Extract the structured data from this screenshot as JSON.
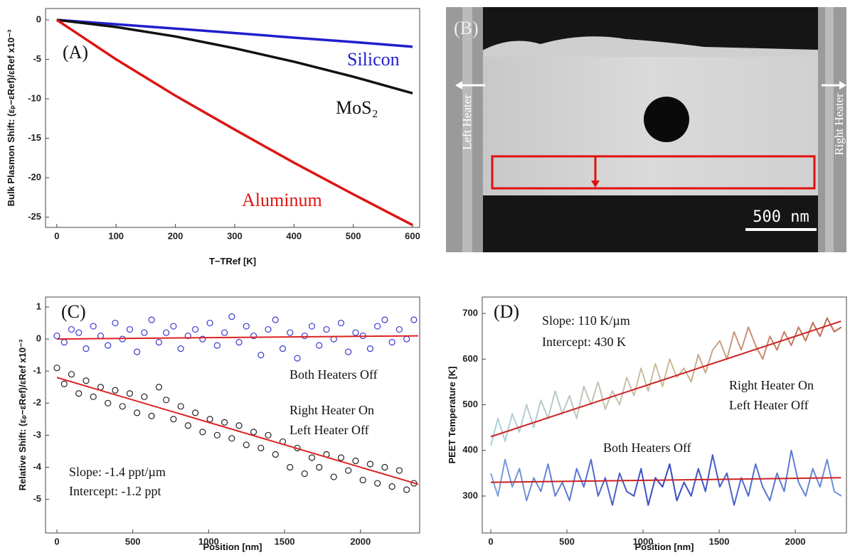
{
  "chart_data": [
    {
      "type": "line",
      "label": "(A)",
      "xlabel": "T−TRef [K]",
      "ylabel": "Bulk Plasmon Shift: (εₚ−εRef)/εRef x10⁻³",
      "x": [
        0,
        100,
        200,
        300,
        400,
        500,
        600
      ],
      "xlim": [
        -19,
        612
      ],
      "ylim": [
        -26.3,
        1.44
      ],
      "xticks": [
        0,
        100,
        200,
        300,
        400,
        500,
        600
      ],
      "yticks": [
        0,
        -5,
        -10,
        -15,
        -20,
        -25
      ],
      "series": [
        {
          "name": "Silicon",
          "color": "#1f1fcc",
          "values": [
            0,
            -0.55,
            -1.1,
            -1.67,
            -2.25,
            -2.8,
            -3.4
          ]
        },
        {
          "name": "MoS₂",
          "color": "#111111",
          "values": [
            0,
            -0.9,
            -2.1,
            -3.6,
            -5.3,
            -7.2,
            -9.3
          ]
        },
        {
          "name": "Aluminum",
          "color": "#dd1515",
          "values": [
            0,
            -5.0,
            -9.6,
            -13.9,
            -18.1,
            -22.1,
            -26.0
          ]
        }
      ]
    },
    {
      "type": "image",
      "label": "(B)",
      "annotations": [
        "Left Heater",
        "Right Heater"
      ],
      "scale_bar": "500 nm"
    },
    {
      "type": "scatter",
      "label": "(C)",
      "xlabel": "Position [nm]",
      "ylabel": "Relative Shift: (εₚ−εRef)/εRef x10⁻³",
      "x": [
        0,
        48,
        96,
        144,
        192,
        240,
        288,
        336,
        384,
        432,
        480,
        528,
        576,
        624,
        672,
        720,
        768,
        816,
        864,
        912,
        960,
        1008,
        1056,
        1104,
        1152,
        1200,
        1248,
        1296,
        1344,
        1392,
        1440,
        1488,
        1536,
        1584,
        1632,
        1680,
        1728,
        1776,
        1824,
        1872,
        1920,
        1968,
        2016,
        2064,
        2112,
        2160,
        2208,
        2256,
        2304,
        2352
      ],
      "xlim": [
        -75,
        2390
      ],
      "ylim": [
        -6.05,
        1.31
      ],
      "xticks": [
        0,
        500,
        1000,
        1500,
        2000
      ],
      "yticks": [
        1,
        0,
        -1,
        -2,
        -3,
        -4,
        -5
      ],
      "series": [
        {
          "color": "#3a3ad0",
          "values": [
            0.1,
            -0.1,
            0.3,
            0.2,
            -0.3,
            0.4,
            0.1,
            -0.2,
            0.5,
            0.0,
            0.3,
            -0.4,
            0.2,
            0.6,
            -0.1,
            0.2,
            0.4,
            -0.3,
            0.1,
            0.3,
            0.0,
            0.5,
            -0.2,
            0.2,
            0.7,
            -0.1,
            0.4,
            0.1,
            -0.5,
            0.3,
            0.6,
            -0.3,
            0.2,
            -0.6,
            0.1,
            0.4,
            -0.2,
            0.3,
            0.0,
            0.5,
            -0.4,
            0.2,
            0.1,
            -0.3,
            0.4,
            0.6,
            -0.1,
            0.3,
            0.0,
            0.6
          ]
        },
        {
          "color": "#222222",
          "values": [
            -0.9,
            -1.4,
            -1.1,
            -1.7,
            -1.3,
            -1.8,
            -1.5,
            -2.0,
            -1.6,
            -2.1,
            -1.7,
            -2.3,
            -1.8,
            -2.4,
            -1.5,
            -1.9,
            -2.5,
            -2.1,
            -2.7,
            -2.3,
            -2.9,
            -2.5,
            -3.0,
            -2.6,
            -3.1,
            -2.7,
            -3.3,
            -2.9,
            -3.4,
            -3.0,
            -3.6,
            -3.2,
            -4.0,
            -3.4,
            -4.2,
            -3.7,
            -4.0,
            -3.6,
            -4.3,
            -3.7,
            -4.1,
            -3.8,
            -4.4,
            -3.9,
            -4.5,
            -4.0,
            -4.6,
            -4.1,
            -4.7,
            -4.5
          ]
        }
      ],
      "fits": [
        {
          "color": "#dd2222",
          "x": [
            0,
            2380
          ],
          "values": [
            0.0,
            0.1
          ]
        },
        {
          "color": "#dd2222",
          "x": [
            0,
            2380
          ],
          "values": [
            -1.2,
            -4.53
          ]
        }
      ],
      "annotations": [
        "Both Heaters Off",
        "Right Heater On",
        "Left Heater Off",
        "Slope: -1.4 ppt/µm",
        "Intercept: -1.2 ppt"
      ]
    },
    {
      "type": "line",
      "label": "(D)",
      "xlabel": "Position [nm]",
      "ylabel": "PEET Temperature [K]",
      "x": [
        0,
        47,
        94,
        141,
        188,
        235,
        282,
        329,
        376,
        423,
        470,
        517,
        564,
        611,
        658,
        705,
        752,
        799,
        846,
        893,
        940,
        987,
        1034,
        1081,
        1128,
        1175,
        1222,
        1269,
        1316,
        1363,
        1410,
        1457,
        1504,
        1551,
        1598,
        1645,
        1692,
        1739,
        1786,
        1833,
        1880,
        1927,
        1974,
        2021,
        2068,
        2115,
        2162,
        2209,
        2256,
        2303
      ],
      "xlim": [
        -56,
        2336
      ],
      "ylim": [
        219,
        736
      ],
      "xticks": [
        0,
        500,
        1000,
        1500,
        2000
      ],
      "yticks": [
        300,
        400,
        500,
        600,
        700
      ],
      "series": [
        {
          "colors": [
            "#a9d3e3",
            "#cdbb98",
            "#c0604a"
          ],
          "values": [
            410,
            470,
            420,
            480,
            440,
            500,
            450,
            510,
            470,
            530,
            480,
            520,
            470,
            540,
            500,
            550,
            490,
            530,
            500,
            560,
            520,
            580,
            530,
            590,
            540,
            600,
            560,
            580,
            550,
            610,
            570,
            620,
            640,
            600,
            660,
            620,
            670,
            630,
            600,
            650,
            620,
            660,
            630,
            670,
            640,
            680,
            650,
            690,
            660,
            670
          ]
        },
        {
          "colors": [
            "#7fa6e0",
            "#3447bf",
            "#6f95dc"
          ],
          "values": [
            350,
            300,
            380,
            320,
            360,
            290,
            340,
            310,
            370,
            300,
            330,
            290,
            360,
            320,
            380,
            300,
            340,
            280,
            350,
            310,
            300,
            360,
            280,
            340,
            320,
            370,
            290,
            330,
            300,
            360,
            310,
            390,
            320,
            350,
            280,
            340,
            300,
            370,
            320,
            290,
            350,
            310,
            400,
            330,
            300,
            360,
            320,
            380,
            310,
            300
          ]
        }
      ],
      "fits": [
        {
          "color": "#cc2222",
          "x": [
            0,
            2300
          ],
          "values": [
            430,
            683
          ]
        },
        {
          "color": "#cc2222",
          "x": [
            0,
            2300
          ],
          "values": [
            330,
            340
          ]
        }
      ],
      "annotations": [
        "Slope: 110 K/µm",
        "Intercept: 430 K",
        "Right Heater On",
        "Left Heater Off",
        "Both Heaters Off"
      ]
    }
  ]
}
